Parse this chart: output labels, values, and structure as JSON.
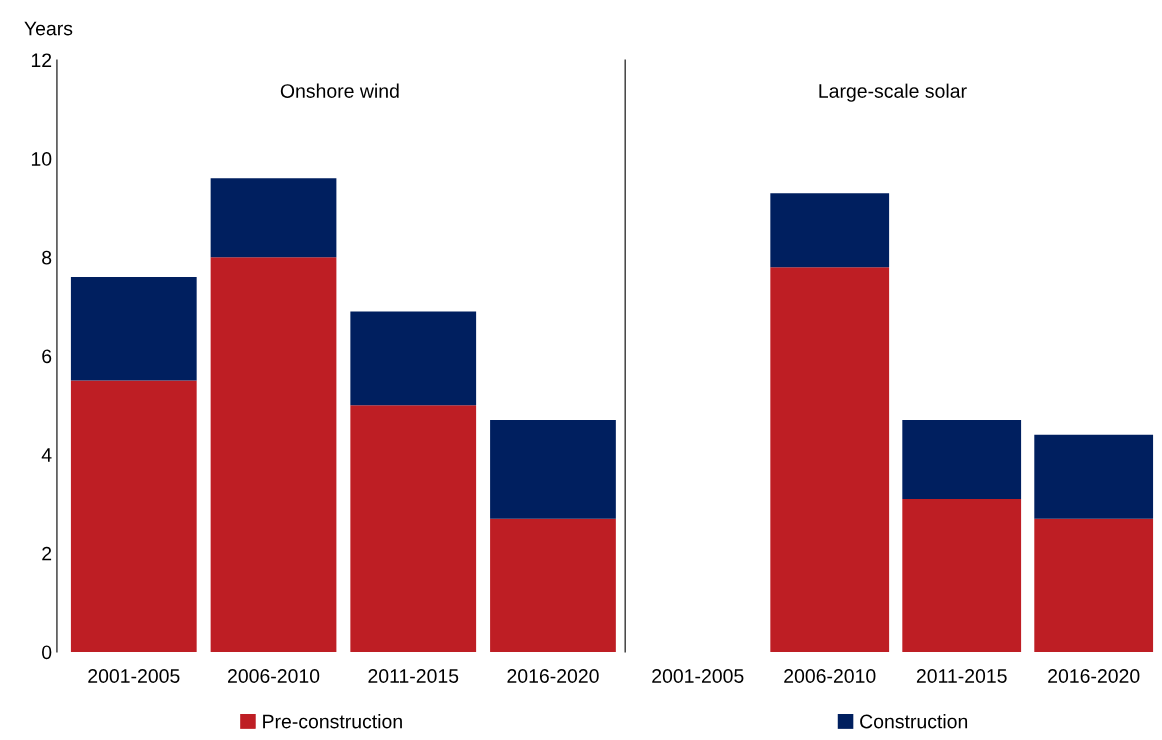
{
  "chart_data": [
    {
      "type": "bar",
      "title": "Onshore wind",
      "ylabel": "Years",
      "stacked": true,
      "categories": [
        "2001-2005",
        "2006-2010",
        "2011-2015",
        "2016-2020"
      ],
      "ylim": [
        0,
        12
      ],
      "yticks": [
        0,
        2,
        4,
        6,
        8,
        10,
        12
      ],
      "legend": "bottom",
      "series": [
        {
          "name": "Pre-construction",
          "color": "#be1e24",
          "values": [
            5.5,
            8.0,
            5.0,
            2.7
          ]
        },
        {
          "name": "Construction",
          "color": "#001f5f",
          "values": [
            2.1,
            1.6,
            1.9,
            2.0
          ]
        }
      ]
    },
    {
      "type": "bar",
      "title": "Large-scale solar",
      "stacked": true,
      "categories": [
        "2001-2005",
        "2006-2010",
        "2011-2015",
        "2016-2020"
      ],
      "ylim": [
        0,
        12
      ],
      "tick_labels": "x",
      "series": [
        {
          "color": "#be1e24",
          "values": [
            null,
            7.8,
            3.1,
            2.7
          ]
        },
        {
          "color": "#001f5f",
          "values": [
            null,
            1.5,
            1.6,
            1.7
          ]
        }
      ]
    }
  ]
}
